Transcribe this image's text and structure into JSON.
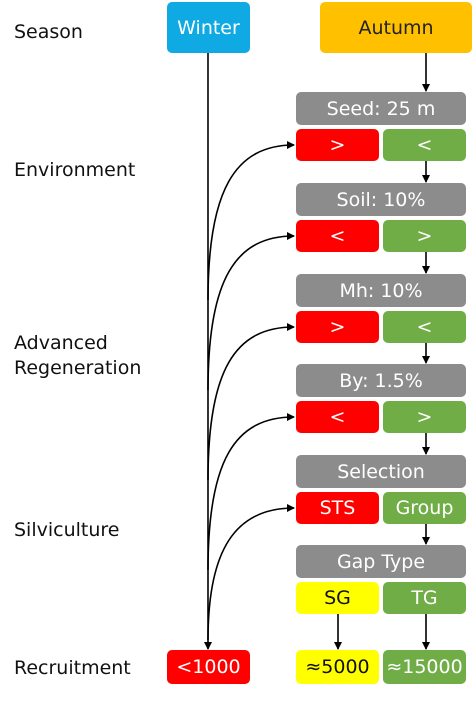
{
  "row_labels": [
    "Season",
    "Environment",
    "Advanced Regeneration",
    "Silviculture",
    "Recruitment"
  ],
  "season": {
    "winter": "Winter",
    "autumn": "Autumn"
  },
  "steps": [
    {
      "label": "Seed: 25 m",
      "left": ">",
      "right": "<"
    },
    {
      "label": "Soil: 10%",
      "left": "<",
      "right": ">"
    },
    {
      "label": "Mh: 10%",
      "left": ">",
      "right": "<"
    },
    {
      "label": "By: 1.5%",
      "left": "<",
      "right": ">"
    },
    {
      "label": "Selection",
      "left": "STS",
      "right": "Group"
    },
    {
      "label": "Gap Type",
      "left": "SG",
      "right": "TG"
    }
  ],
  "recruitment": {
    "winter": "<1000",
    "sg": "≈5000",
    "tg": "≈15000"
  }
}
